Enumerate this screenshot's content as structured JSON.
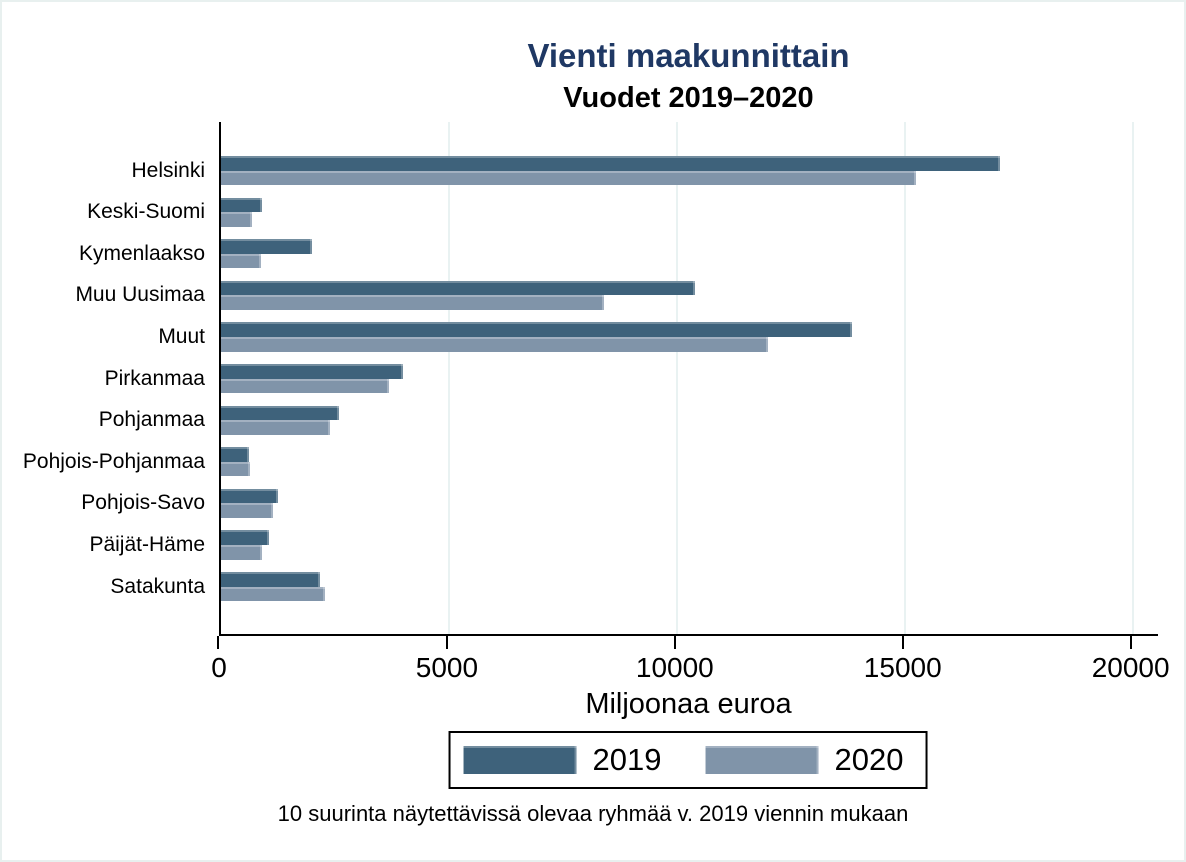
{
  "chart_data": {
    "type": "bar",
    "orientation": "horizontal",
    "title": "Vienti maakunnittain",
    "subtitle": "Vuodet 2019–2020",
    "xlabel": "Miljoonaa euroa",
    "footnote": "10 suurinta näytettävissä olevaa ryhmää v. 2019 viennin mukaan",
    "categories": [
      "Helsinki",
      "Keski-Suomi",
      "Kymenlaakso",
      "Muu Uusimaa",
      "Muut",
      "Pirkanmaa",
      "Pohjanmaa",
      "Pohjois-Pohjanmaa",
      "Pohjois-Savo",
      "Päijät-Häme",
      "Satakunta"
    ],
    "series": [
      {
        "name": "2019",
        "color": "#3e627b",
        "values": [
          17100,
          890,
          2000,
          10400,
          13850,
          4000,
          2590,
          620,
          1260,
          1060,
          2170
        ]
      },
      {
        "name": "2020",
        "color": "#8094a9",
        "values": [
          15250,
          670,
          870,
          8400,
          12000,
          3690,
          2390,
          630,
          1150,
          910,
          2280
        ]
      }
    ],
    "xlim": [
      0,
      20600
    ],
    "xticks": [
      0,
      5000,
      10000,
      15000,
      20000
    ],
    "grid": "vertical-light",
    "legend_position": "bottom-center"
  },
  "colors": {
    "title": "#1f3864",
    "series_2019": "#3e627b",
    "series_2020": "#8094a9",
    "gridline": "#e9f2f2",
    "figure_border": "#e8f0ef",
    "axis": "#000000"
  }
}
